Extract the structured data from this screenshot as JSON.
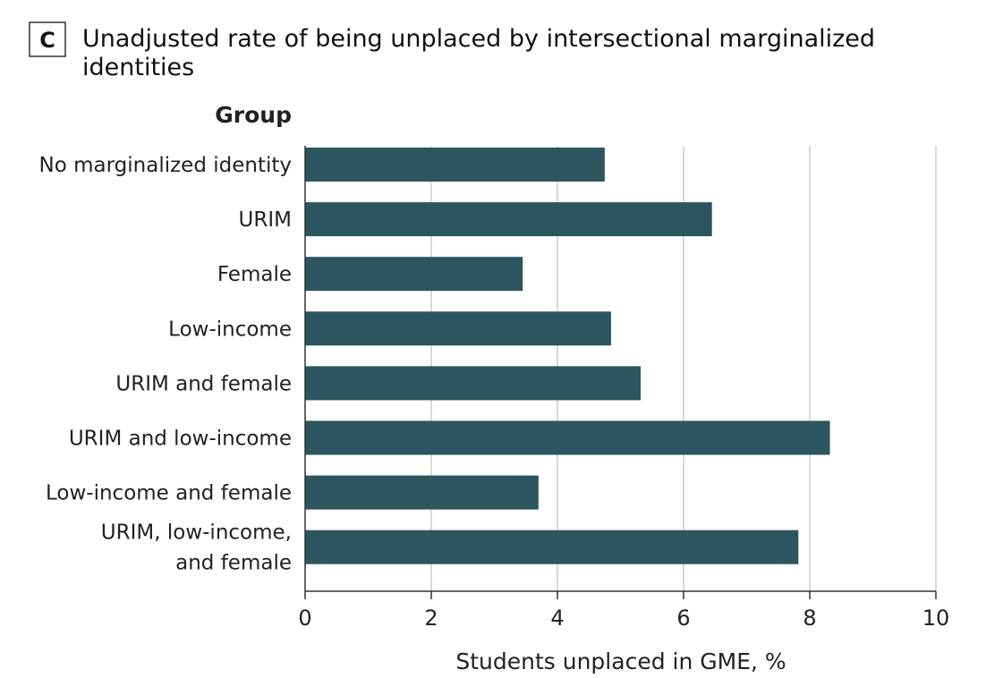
{
  "panel": {
    "letter": "C",
    "title_line1": "Unadjusted rate of being unplaced by intersectional marginalized",
    "title_line2": "identities"
  },
  "chart_data": {
    "type": "bar",
    "orientation": "horizontal",
    "group_header": "Group",
    "categories": [
      [
        "No marginalized identity"
      ],
      [
        "URIM"
      ],
      [
        "Female"
      ],
      [
        "Low-income"
      ],
      [
        "URIM and female"
      ],
      [
        "URIM and low-income"
      ],
      [
        "Low-income and female"
      ],
      [
        "URIM, low-income,",
        "and female"
      ]
    ],
    "values": [
      4.75,
      6.45,
      3.45,
      4.85,
      5.32,
      8.32,
      3.7,
      7.82
    ],
    "xlabel": "Students unplaced in GME, %",
    "xlim": [
      0,
      10
    ],
    "xticks": [
      0,
      2,
      4,
      6,
      8,
      10
    ],
    "grid": true,
    "bar_color": "#2d5560"
  }
}
